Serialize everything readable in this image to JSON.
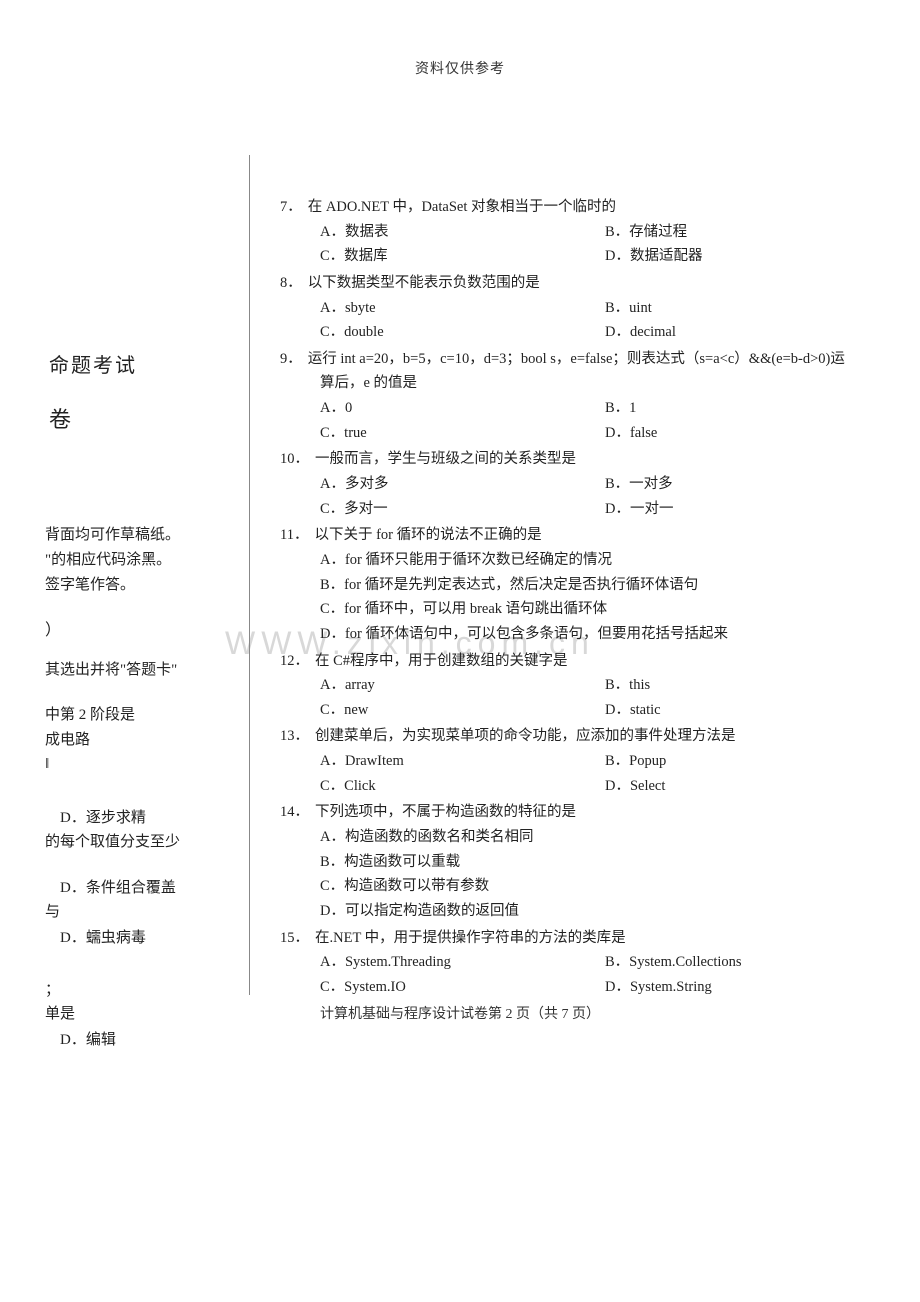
{
  "header": "资料仅供参考",
  "watermark": "WWW.zixin.com.cn",
  "left": {
    "t1": "命题考试",
    "t2": "卷",
    "n1": "背面均可作草稿纸。",
    "n2": "\"的相应代码涂黑。",
    "n3": "签字笔作答。",
    "paren": "）",
    "inst": "其选出并将\"答题卡\"",
    "s1a": "中第 2 阶段是",
    "s1b": "成电路",
    "s1c": "‖",
    "s2a": "D．逐步求精",
    "s2b": "的每个取值分支至少",
    "s3": "D．条件组合覆盖",
    "s4": "与",
    "s5": "D．蠕虫病毒",
    "s6a": "；",
    "s6b": "单是",
    "s6c": "D．编辑"
  },
  "questions": [
    {
      "num": "7．",
      "text": "在 ADO.NET 中，DataSet 对象相当于一个临时的",
      "opts": [
        [
          "A．数据表",
          "B．存储过程"
        ],
        [
          "C．数据库",
          "D．数据适配器"
        ]
      ]
    },
    {
      "num": "8．",
      "text": "以下数据类型不能表示负数范围的是",
      "opts": [
        [
          "A．sbyte",
          "B．uint"
        ],
        [
          "C．double",
          "D．decimal"
        ]
      ]
    },
    {
      "num": "9．",
      "text": "运行 int a=20，b=5，c=10，d=3；bool s，e=false；则表达式（s=a<c）&&(e=b-d>0)运",
      "text2": "算后，e 的值是",
      "opts": [
        [
          "A．0",
          "B．1"
        ],
        [
          "C．true",
          "D．false"
        ]
      ]
    },
    {
      "num": "10．",
      "text": "一般而言，学生与班级之间的关系类型是",
      "opts": [
        [
          "A．多对多",
          "B．一对多"
        ],
        [
          "C．多对一",
          "D．一对一"
        ]
      ]
    },
    {
      "num": "11．",
      "text": "以下关于 for 循环的说法不正确的是",
      "optsFull": [
        "A．for 循环只能用于循环次数已经确定的情况",
        "B．for 循环是先判定表达式，然后决定是否执行循环体语句",
        "C．for 循环中，可以用 break 语句跳出循环体",
        "D．for 循环体语句中，可以包含多条语句，但要用花括号括起来"
      ]
    },
    {
      "num": "12．",
      "text": "在 C#程序中，用于创建数组的关键字是",
      "opts": [
        [
          "A．array",
          "B．this"
        ],
        [
          "C．new",
          "D．static"
        ]
      ]
    },
    {
      "num": "13．",
      "text": "创建菜单后，为实现菜单项的命令功能，应添加的事件处理方法是",
      "opts": [
        [
          "A．DrawItem",
          "B．Popup"
        ],
        [
          "C．Click",
          "D．Select"
        ]
      ]
    },
    {
      "num": "14．",
      "text": "下列选项中，不属于构造函数的特征的是",
      "optsFull": [
        "A．构造函数的函数名和类名相同",
        "B．构造函数可以重载",
        "C．构造函数可以带有参数",
        "D．可以指定构造函数的返回值"
      ]
    },
    {
      "num": "15．",
      "text": "在.NET 中，用于提供操作字符串的方法的类库是",
      "opts": [
        [
          "A．System.Threading",
          "B．System.Collections"
        ],
        [
          "C．System.IO",
          "D．System.String"
        ]
      ]
    }
  ],
  "footer": "计算机基础与程序设计试卷第 2 页（共 7 页）"
}
